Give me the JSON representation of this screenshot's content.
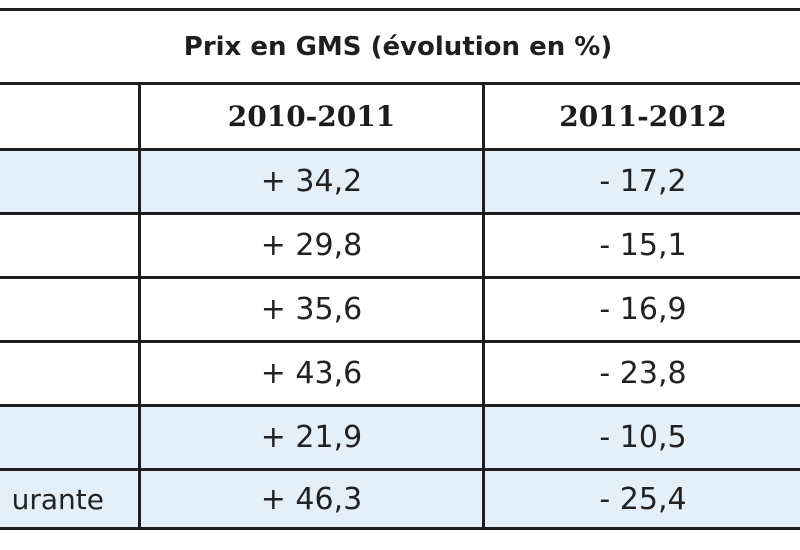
{
  "table": {
    "title": "Prix en GMS (évolution en %)",
    "header": {
      "col0": "",
      "col1": "2010-2011",
      "col2": "2011-2012"
    },
    "rows": [
      {
        "label": "",
        "v1": "+ 34,2",
        "v2": "- 17,2",
        "bg": "#e4f0f9"
      },
      {
        "label": "",
        "v1": "+ 29,8",
        "v2": "- 15,1",
        "bg": "#ffffff"
      },
      {
        "label": "",
        "v1": "+ 35,6",
        "v2": "- 16,9",
        "bg": "#ffffff"
      },
      {
        "label": "",
        "v1": "+ 43,6",
        "v2": "- 23,8",
        "bg": "#ffffff"
      },
      {
        "label": "",
        "v1": "+ 21,9",
        "v2": "- 10,5",
        "bg": "#e4f0f9"
      },
      {
        "label": "urante",
        "v1": "+ 46,3",
        "v2": "- 25,4",
        "bg": "#e4f0f9"
      }
    ]
  }
}
